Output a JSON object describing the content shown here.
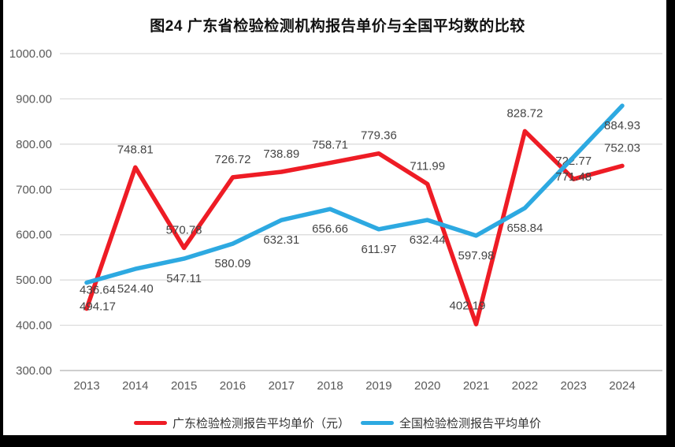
{
  "title": "图24  广东省检验检测机构报告单价与全国平均数的比较",
  "chart_data": {
    "type": "line",
    "categories": [
      "2013",
      "2014",
      "2015",
      "2016",
      "2017",
      "2018",
      "2019",
      "2020",
      "2021",
      "2022",
      "2023",
      "2024"
    ],
    "series": [
      {
        "name": "广东检验检测报告平均单价（元）",
        "color": "#ee1c25",
        "values": [
          436.64,
          748.81,
          570.78,
          726.72,
          738.89,
          758.71,
          779.36,
          711.99,
          402.19,
          828.72,
          722.77,
          752.03
        ],
        "labels": [
          "436.64",
          "748.81",
          "570.78",
          "726.72",
          "738.89",
          "758.71",
          "779.36",
          "711.99",
          "402.19",
          "828.72",
          "722.77",
          "752.03"
        ],
        "label_position": "above"
      },
      {
        "name": "全国检验检测报告平均单价",
        "color": "#2da9e1",
        "values": [
          494.17,
          524.4,
          547.11,
          580.09,
          632.31,
          656.66,
          611.97,
          632.44,
          597.98,
          658.84,
          771.48,
          884.93
        ],
        "labels": [
          "494.17",
          "524.40",
          "547.11",
          "580.09",
          "632.31",
          "656.66",
          "611.97",
          "632.44",
          "597.98",
          "658.84",
          "771.48",
          "884.93"
        ],
        "label_position": "below"
      }
    ],
    "ylim": [
      300,
      1000
    ],
    "yticks": [
      "300.00",
      "400.00",
      "500.00",
      "600.00",
      "700.00",
      "800.00",
      "900.00",
      "1000.00"
    ],
    "grid": "horizontal",
    "legend_position": "bottom",
    "colors": {
      "grid_line": "#d9d9d9",
      "axis_line": "#bfbfbf",
      "tick_label": "#595959",
      "data_label": "#444444"
    }
  }
}
